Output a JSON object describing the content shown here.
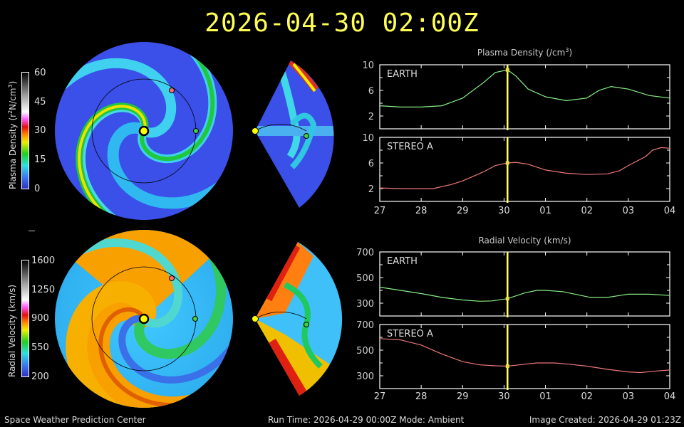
{
  "title": "2026-04-30  02:00Z",
  "colorbars": {
    "density": {
      "label_main": "Plasma Density (r",
      "label_sup": "2",
      "label_rest": "N/cm",
      "label_sup2": "3",
      "label_end": ")",
      "ticks": [
        "60",
        "45",
        "30",
        "15",
        "0"
      ]
    },
    "velocity": {
      "label": "Radial Velocity (km/s)",
      "ticks": [
        "1600",
        "1250",
        "900",
        "550",
        "200"
      ]
    }
  },
  "markers": {
    "sun": "#ffff00",
    "earth": "#40d040",
    "stereo_a": "#ff7070"
  },
  "charts_colors": {
    "earth": "#88ee88",
    "stereo_a": "#ee7777",
    "now_line": "#ffff66"
  },
  "chart_data": [
    {
      "type": "line",
      "title": "Plasma Density (/cm",
      "title_sup": "3",
      "title_end": ")",
      "x_tick_labels": [
        "27",
        "28",
        "29",
        "30",
        "01",
        "02",
        "03",
        "04"
      ],
      "x_ticks": [
        "2026-04-27",
        "2026-04-28",
        "2026-04-29",
        "2026-04-30",
        "2026-05-01",
        "2026-05-02",
        "2026-05-03",
        "2026-05-04"
      ],
      "xlim": [
        "2026-04-27T00:00",
        "2026-05-04T00:00"
      ],
      "current_time": "2026-04-30T02:00",
      "ylim": [
        0,
        10
      ],
      "y_tick_labels": [
        "10",
        "6",
        "2"
      ],
      "y_ticks": [
        10,
        6,
        2
      ],
      "panels": [
        {
          "name": "EARTH",
          "points": [
            [
              "2026-04-27T00:00",
              3.6
            ],
            [
              "2026-04-27T12:00",
              3.4
            ],
            [
              "2026-04-28T00:00",
              3.4
            ],
            [
              "2026-04-28T12:00",
              3.6
            ],
            [
              "2026-04-29T00:00",
              4.8
            ],
            [
              "2026-04-29T12:00",
              7.2
            ],
            [
              "2026-04-29T19:00",
              8.8
            ],
            [
              "2026-04-30T02:00",
              9.2
            ],
            [
              "2026-04-30T07:00",
              8.2
            ],
            [
              "2026-04-30T14:00",
              6.2
            ],
            [
              "2026-05-01T00:00",
              5.0
            ],
            [
              "2026-05-01T12:00",
              4.4
            ],
            [
              "2026-05-02T00:00",
              4.8
            ],
            [
              "2026-05-02T07:00",
              6.0
            ],
            [
              "2026-05-02T14:00",
              6.6
            ],
            [
              "2026-05-03T00:00",
              6.2
            ],
            [
              "2026-05-03T12:00",
              5.2
            ],
            [
              "2026-05-04T00:00",
              4.8
            ]
          ]
        },
        {
          "name": "STEREO A",
          "points": [
            [
              "2026-04-27T00:00",
              2.1
            ],
            [
              "2026-04-27T12:00",
              2.0
            ],
            [
              "2026-04-28T07:00",
              2.0
            ],
            [
              "2026-04-28T17:00",
              2.6
            ],
            [
              "2026-04-29T00:00",
              3.2
            ],
            [
              "2026-04-29T12:00",
              4.6
            ],
            [
              "2026-04-29T19:00",
              5.6
            ],
            [
              "2026-04-30T02:00",
              6.0
            ],
            [
              "2026-04-30T07:00",
              6.1
            ],
            [
              "2026-04-30T14:00",
              5.8
            ],
            [
              "2026-05-01T00:00",
              4.9
            ],
            [
              "2026-05-01T12:00",
              4.4
            ],
            [
              "2026-05-02T00:00",
              4.2
            ],
            [
              "2026-05-02T12:00",
              4.3
            ],
            [
              "2026-05-02T19:00",
              4.8
            ],
            [
              "2026-05-03T00:00",
              5.6
            ],
            [
              "2026-05-03T10:00",
              7.0
            ],
            [
              "2026-05-03T14:00",
              8.0
            ],
            [
              "2026-05-03T19:00",
              8.4
            ],
            [
              "2026-05-04T00:00",
              8.3
            ]
          ]
        }
      ]
    },
    {
      "type": "line",
      "title": "Radial Velocity (km/s)",
      "x_tick_labels": [
        "27",
        "28",
        "29",
        "30",
        "01",
        "02",
        "03",
        "04"
      ],
      "x_ticks": [
        "2026-04-27",
        "2026-04-28",
        "2026-04-29",
        "2026-04-30",
        "2026-05-01",
        "2026-05-02",
        "2026-05-03",
        "2026-05-04"
      ],
      "xlim": [
        "2026-04-27T00:00",
        "2026-05-04T00:00"
      ],
      "current_time": "2026-04-30T02:00",
      "ylim": [
        200,
        700
      ],
      "y_tick_labels": [
        "700",
        "500",
        "300"
      ],
      "y_ticks": [
        700,
        500,
        300
      ],
      "panels": [
        {
          "name": "EARTH",
          "points": [
            [
              "2026-04-27T00:00",
              425
            ],
            [
              "2026-04-27T12:00",
              400
            ],
            [
              "2026-04-28T00:00",
              375
            ],
            [
              "2026-04-28T12:00",
              345
            ],
            [
              "2026-04-29T00:00",
              325
            ],
            [
              "2026-04-29T10:00",
              315
            ],
            [
              "2026-04-29T17:00",
              318
            ],
            [
              "2026-04-30T02:00",
              335
            ],
            [
              "2026-04-30T12:00",
              380
            ],
            [
              "2026-04-30T19:00",
              400
            ],
            [
              "2026-05-01T00:00",
              400
            ],
            [
              "2026-05-01T10:00",
              390
            ],
            [
              "2026-05-01T19:00",
              365
            ],
            [
              "2026-05-02T02:00",
              345
            ],
            [
              "2026-05-02T12:00",
              345
            ],
            [
              "2026-05-02T19:00",
              360
            ],
            [
              "2026-05-03T00:00",
              370
            ],
            [
              "2026-05-03T12:00",
              370
            ],
            [
              "2026-05-04T00:00",
              360
            ]
          ]
        },
        {
          "name": "STEREO A",
          "points": [
            [
              "2026-04-27T00:00",
              590
            ],
            [
              "2026-04-27T12:00",
              580
            ],
            [
              "2026-04-28T00:00",
              540
            ],
            [
              "2026-04-28T12:00",
              470
            ],
            [
              "2026-04-29T00:00",
              410
            ],
            [
              "2026-04-29T10:00",
              385
            ],
            [
              "2026-04-29T19:00",
              378
            ],
            [
              "2026-04-30T02:00",
              375
            ],
            [
              "2026-04-30T12:00",
              390
            ],
            [
              "2026-04-30T19:00",
              400
            ],
            [
              "2026-05-01T05:00",
              400
            ],
            [
              "2026-05-01T14:00",
              390
            ],
            [
              "2026-05-02T00:00",
              375
            ],
            [
              "2026-05-02T12:00",
              350
            ],
            [
              "2026-05-03T00:00",
              330
            ],
            [
              "2026-05-03T07:00",
              325
            ],
            [
              "2026-05-03T17:00",
              338
            ],
            [
              "2026-05-04T00:00",
              345
            ]
          ]
        }
      ]
    }
  ],
  "footer": {
    "left": "Space Weather Prediction Center",
    "center": "Run Time: 2026-04-29 00:00Z  Mode: Ambient",
    "right": "Image Created: 2026-04-29 01:23Z"
  }
}
